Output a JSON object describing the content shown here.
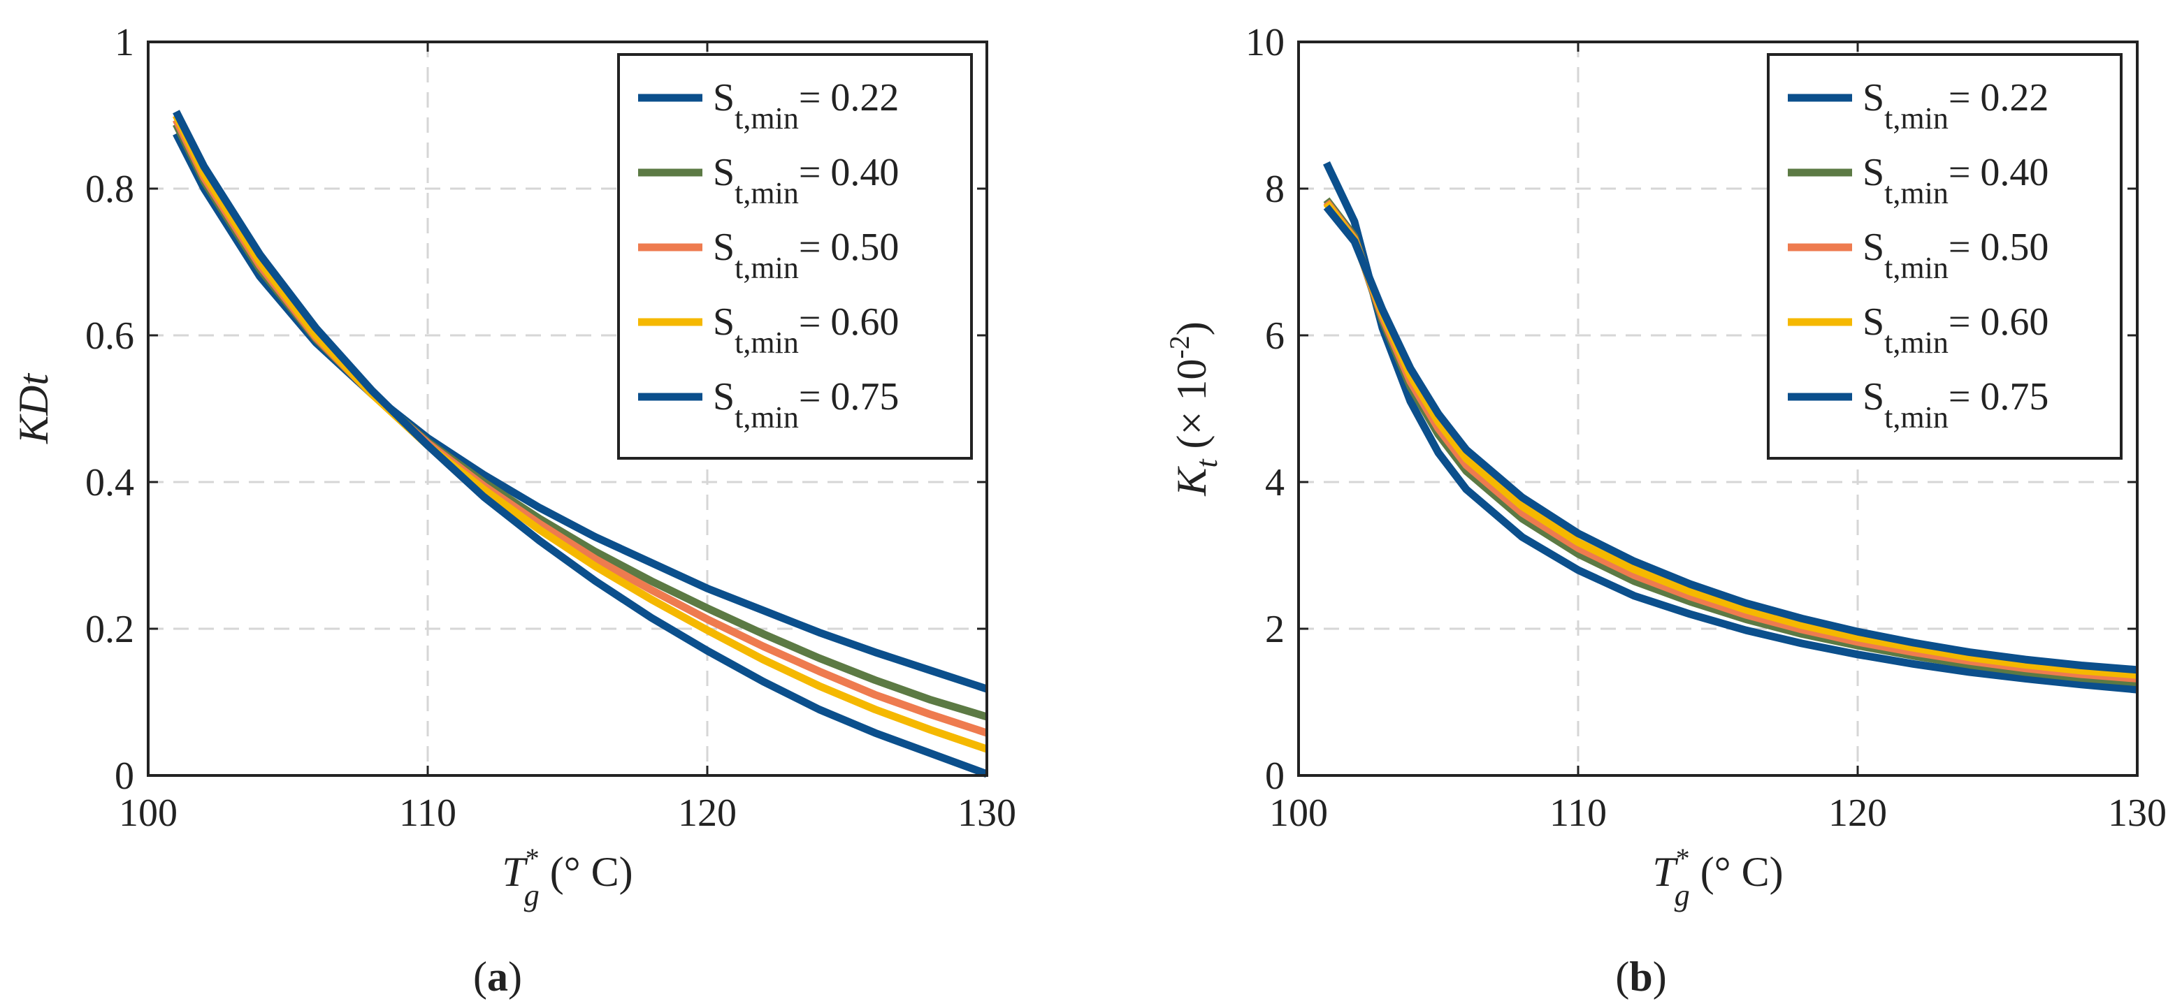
{
  "chart_data": [
    {
      "type": "line",
      "panel_label": "(a)",
      "ylabel": "KDt",
      "xlabel": "T*g (° C)",
      "xlim": [
        100,
        130
      ],
      "ylim": [
        0,
        1
      ],
      "xticks": [
        100,
        110,
        120,
        130
      ],
      "yticks": [
        0,
        0.2,
        0.4,
        0.6,
        0.8,
        1
      ],
      "xtick_labels": [
        "100",
        "110",
        "120",
        "130"
      ],
      "ytick_labels": [
        "0",
        "0.2",
        "0.4",
        "0.6",
        "0.8",
        "1"
      ],
      "grid": true,
      "legend_position": "top-right",
      "x": [
        101,
        102,
        104,
        106,
        108,
        110,
        112,
        114,
        116,
        118,
        120,
        122,
        124,
        126,
        128,
        130
      ],
      "series": [
        {
          "name": "S_t,min = 0.22",
          "color": "#0b4f8c",
          "values": [
            0.875,
            0.8,
            0.68,
            0.59,
            0.52,
            0.46,
            0.41,
            0.365,
            0.325,
            0.29,
            0.255,
            0.225,
            0.195,
            0.168,
            0.143,
            0.118
          ]
        },
        {
          "name": "S_t,min = 0.40",
          "color": "#5c7a44",
          "values": [
            0.888,
            0.81,
            0.69,
            0.595,
            0.52,
            0.455,
            0.4,
            0.35,
            0.305,
            0.265,
            0.228,
            0.193,
            0.16,
            0.13,
            0.103,
            0.08
          ]
        },
        {
          "name": "S_t,min = 0.50",
          "color": "#ee7b4f",
          "values": [
            0.894,
            0.815,
            0.695,
            0.597,
            0.52,
            0.453,
            0.395,
            0.343,
            0.295,
            0.253,
            0.213,
            0.176,
            0.142,
            0.11,
            0.083,
            0.058
          ]
        },
        {
          "name": "S_t,min = 0.60",
          "color": "#f5b800",
          "values": [
            0.9,
            0.82,
            0.7,
            0.6,
            0.52,
            0.45,
            0.39,
            0.335,
            0.285,
            0.24,
            0.198,
            0.158,
            0.122,
            0.09,
            0.062,
            0.036
          ]
        },
        {
          "name": "S_t,min = 0.75",
          "color": "#0b4f8c",
          "values": [
            0.905,
            0.83,
            0.71,
            0.61,
            0.525,
            0.45,
            0.38,
            0.32,
            0.265,
            0.215,
            0.17,
            0.128,
            0.09,
            0.058,
            0.03,
            0.002
          ]
        }
      ]
    },
    {
      "type": "line",
      "panel_label": "(b)",
      "ylabel": "Kt (× 10-2)",
      "xlabel": "T*g (° C)",
      "xlim": [
        100,
        130
      ],
      "ylim": [
        0,
        10
      ],
      "xticks": [
        100,
        110,
        120,
        130
      ],
      "yticks": [
        0,
        2,
        4,
        6,
        8,
        10
      ],
      "xtick_labels": [
        "100",
        "110",
        "120",
        "130"
      ],
      "ytick_labels": [
        "0",
        "2",
        "4",
        "6",
        "8",
        "10"
      ],
      "grid": true,
      "legend_position": "top-right",
      "x": [
        101,
        102,
        103,
        104,
        105,
        106,
        108,
        110,
        112,
        114,
        116,
        118,
        120,
        122,
        124,
        126,
        128,
        130
      ],
      "series": [
        {
          "name": "S_t,min = 0.22",
          "color": "#0b4f8c",
          "values": [
            8.35,
            7.55,
            6.1,
            5.1,
            4.4,
            3.9,
            3.25,
            2.8,
            2.45,
            2.2,
            1.98,
            1.8,
            1.65,
            1.52,
            1.41,
            1.32,
            1.24,
            1.17
          ]
        },
        {
          "name": "S_t,min = 0.40",
          "color": "#5c7a44",
          "values": [
            7.85,
            7.35,
            6.2,
            5.3,
            4.65,
            4.15,
            3.5,
            3.02,
            2.65,
            2.37,
            2.13,
            1.93,
            1.77,
            1.63,
            1.51,
            1.41,
            1.33,
            1.27
          ]
        },
        {
          "name": "S_t,min = 0.50",
          "color": "#ee7b4f",
          "values": [
            7.82,
            7.32,
            6.25,
            5.37,
            4.73,
            4.23,
            3.58,
            3.1,
            2.73,
            2.44,
            2.19,
            1.99,
            1.82,
            1.68,
            1.56,
            1.46,
            1.38,
            1.32
          ]
        },
        {
          "name": "S_t,min = 0.60",
          "color": "#f5b800",
          "values": [
            7.8,
            7.3,
            6.3,
            5.45,
            4.82,
            4.32,
            3.67,
            3.18,
            2.81,
            2.51,
            2.26,
            2.05,
            1.88,
            1.74,
            1.61,
            1.51,
            1.43,
            1.37
          ]
        },
        {
          "name": "S_t,min = 0.75",
          "color": "#0b4f8c",
          "values": [
            7.75,
            7.28,
            6.35,
            5.55,
            4.93,
            4.44,
            3.79,
            3.3,
            2.92,
            2.61,
            2.35,
            2.14,
            1.96,
            1.81,
            1.68,
            1.58,
            1.5,
            1.44
          ]
        }
      ]
    }
  ]
}
